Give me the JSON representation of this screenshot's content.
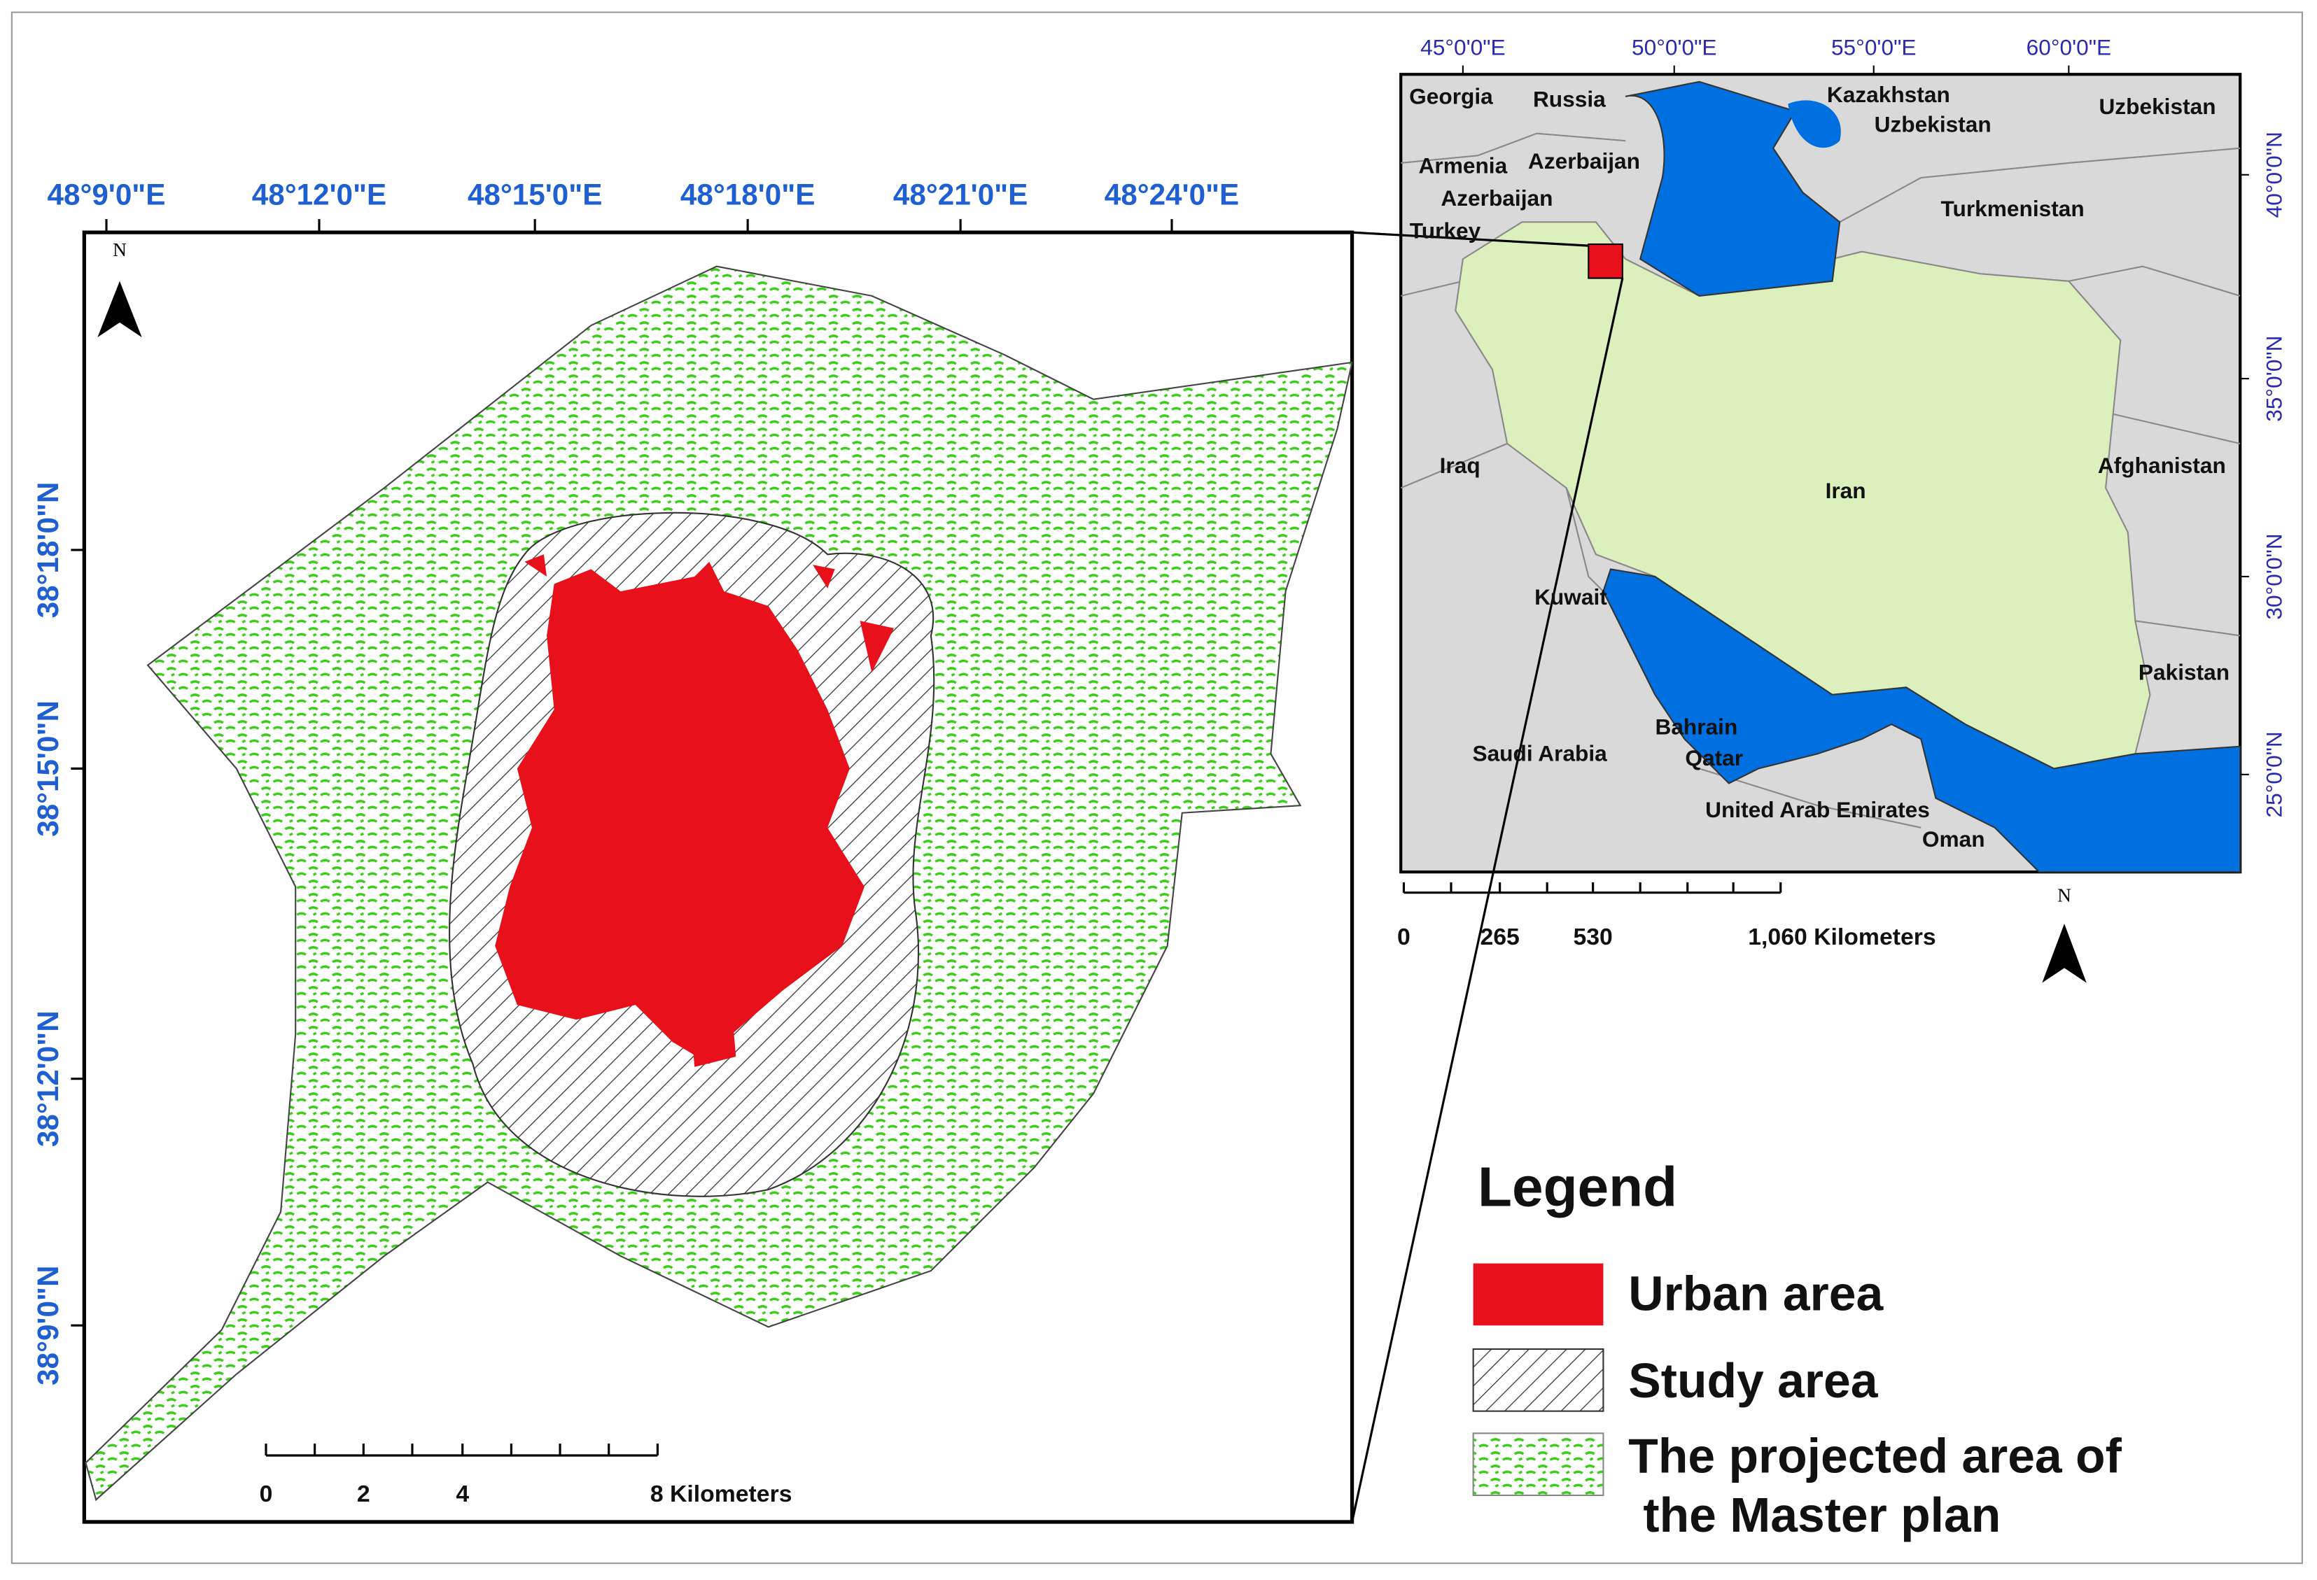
{
  "main_map": {
    "lon_labels": [
      "48°9'0\"E",
      "48°12'0\"E",
      "48°15'0\"E",
      "48°18'0\"E",
      "48°21'0\"E",
      "48°24'0\"E"
    ],
    "lat_labels": [
      "38°18'0\"N",
      "38°15'0\"N",
      "38°12'0\"N",
      "38°9'0\"N"
    ],
    "scale_labels": [
      "0",
      "2",
      "4",
      "8 Kilometers"
    ],
    "north": "N"
  },
  "inset_map": {
    "lon_labels": [
      "45°0'0\"E",
      "50°0'0\"E",
      "55°0'0\"E",
      "60°0'0\"E"
    ],
    "lat_labels": [
      "40°0'0\"N",
      "35°0'0\"N",
      "30°0'0\"N",
      "25°0'0\"N"
    ],
    "countries": [
      "Georgia",
      "Russia",
      "Kazakhstan",
      "Uzbekistan",
      "Uzbekistan",
      "Armenia",
      "Azerbaijan",
      "Azerbaijan",
      "Turkey",
      "Turkmenistan",
      "Iraq",
      "Iran",
      "Afghanistan",
      "Kuwait",
      "Pakistan",
      "Bahrain",
      "Qatar",
      "Saudi Arabia",
      "United Arab Emirates",
      "Oman"
    ],
    "scale_labels": [
      "0",
      "265",
      "530",
      "1,060 Kilometers"
    ],
    "north": "N"
  },
  "legend": {
    "title": "Legend",
    "items": [
      "Urban area",
      "Study area",
      [
        "The projected area of",
        "the Master plan"
      ]
    ]
  }
}
